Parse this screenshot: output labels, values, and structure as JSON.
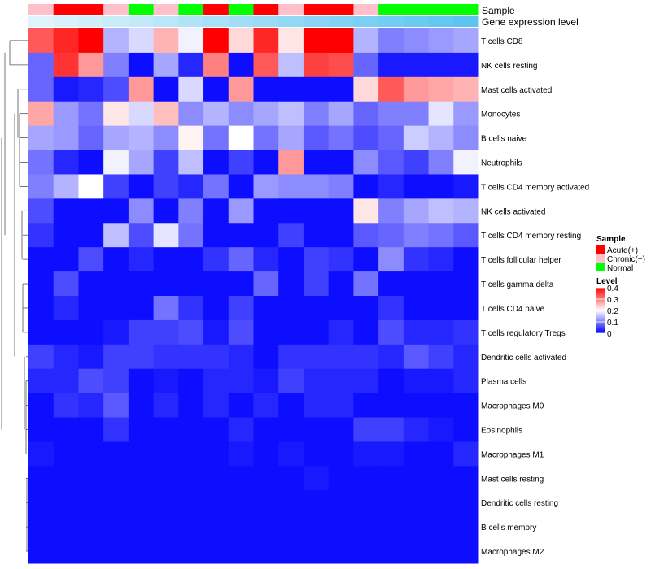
{
  "chart_data": {
    "type": "heatmap",
    "annotation_titles": {
      "sample": "Sample",
      "expression": "Gene expression level"
    },
    "sample_groups": [
      "Chronic(+)",
      "Acute(+)",
      "Acute(+)",
      "Chronic(+)",
      "Normal",
      "Chronic(+)",
      "Normal",
      "Acute(+)",
      "Normal",
      "Acute(+)",
      "Chronic(+)",
      "Acute(+)",
      "Acute(+)",
      "Chronic(+)",
      "Normal",
      "Normal",
      "Normal",
      "Normal"
    ],
    "gene_expression_level": [
      0.02,
      0.04,
      0.06,
      0.08,
      0.1,
      0.12,
      0.14,
      0.16,
      0.18,
      0.2,
      0.22,
      0.24,
      0.26,
      0.28,
      0.3,
      0.32,
      0.34,
      0.36
    ],
    "rows": [
      "T cells CD8",
      "NK cells resting",
      "Mast cells activated",
      "Monocytes",
      "B cells naive",
      "Neutrophils",
      "T cells CD4 memory activated",
      "NK cells activated",
      "T cells CD4 memory resting",
      "T cells follicular helper",
      "T cells gamma delta",
      "T cells CD4 naive",
      "T cells regulatory  Tregs",
      "Dendritic cells activated",
      "Plasma cells",
      "Macrophages M0",
      "Eosinophils",
      "Macrophages M1",
      "Mast cells resting",
      "Dendritic cells resting",
      "B cells memory",
      "Macrophages M2"
    ],
    "values": [
      [
        0.33,
        0.37,
        0.4,
        0.14,
        0.17,
        0.26,
        0.19,
        0.4,
        0.23,
        0.37,
        0.22,
        0.4,
        0.4,
        0.14,
        0.1,
        0.11,
        0.12,
        0.13
      ],
      [
        0.08,
        0.36,
        0.28,
        0.1,
        0.01,
        0.13,
        0.03,
        0.3,
        0.01,
        0.33,
        0.15,
        0.35,
        0.34,
        0.08,
        0.02,
        0.02,
        0.02,
        0.02
      ],
      [
        0.08,
        0.02,
        0.03,
        0.06,
        0.28,
        0.01,
        0.17,
        0.01,
        0.28,
        0.01,
        0.01,
        0.01,
        0.01,
        0.23,
        0.33,
        0.28,
        0.27,
        0.26
      ],
      [
        0.27,
        0.12,
        0.09,
        0.22,
        0.17,
        0.25,
        0.11,
        0.14,
        0.11,
        0.13,
        0.15,
        0.1,
        0.13,
        0.08,
        0.1,
        0.1,
        0.18,
        0.12
      ],
      [
        0.13,
        0.12,
        0.08,
        0.13,
        0.14,
        0.11,
        0.21,
        0.09,
        0.2,
        0.09,
        0.13,
        0.07,
        0.09,
        0.06,
        0.08,
        0.16,
        0.14,
        0.11
      ],
      [
        0.09,
        0.03,
        0.01,
        0.19,
        0.13,
        0.05,
        0.15,
        0.01,
        0.05,
        0.01,
        0.28,
        0.01,
        0.01,
        0.11,
        0.07,
        0.05,
        0.1,
        0.19
      ],
      [
        0.1,
        0.14,
        0.2,
        0.05,
        0.01,
        0.05,
        0.03,
        0.09,
        0.01,
        0.12,
        0.11,
        0.11,
        0.1,
        0.01,
        0.03,
        0.01,
        0.01,
        0.02
      ],
      [
        0.06,
        0.01,
        0.01,
        0.01,
        0.11,
        0.01,
        0.1,
        0.01,
        0.12,
        0.01,
        0.01,
        0.01,
        0.01,
        0.22,
        0.1,
        0.13,
        0.15,
        0.14
      ],
      [
        0.04,
        0.01,
        0.01,
        0.15,
        0.06,
        0.18,
        0.09,
        0.01,
        0.01,
        0.01,
        0.05,
        0.01,
        0.01,
        0.07,
        0.08,
        0.1,
        0.09,
        0.07
      ],
      [
        0.01,
        0.01,
        0.06,
        0.01,
        0.03,
        0.01,
        0.01,
        0.04,
        0.08,
        0.03,
        0.01,
        0.05,
        0.04,
        0.01,
        0.11,
        0.04,
        0.03,
        0.01
      ],
      [
        0.01,
        0.06,
        0.01,
        0.01,
        0.01,
        0.01,
        0.01,
        0.01,
        0.01,
        0.08,
        0.01,
        0.05,
        0.01,
        0.09,
        0.01,
        0.01,
        0.01,
        0.01
      ],
      [
        0.01,
        0.03,
        0.01,
        0.01,
        0.01,
        0.09,
        0.04,
        0.01,
        0.05,
        0.01,
        0.01,
        0.01,
        0.01,
        0.01,
        0.04,
        0.01,
        0.01,
        0.01
      ],
      [
        0.01,
        0.01,
        0.01,
        0.02,
        0.05,
        0.05,
        0.06,
        0.02,
        0.06,
        0.01,
        0.01,
        0.01,
        0.03,
        0.01,
        0.06,
        0.03,
        0.03,
        0.04
      ],
      [
        0.05,
        0.03,
        0.02,
        0.05,
        0.05,
        0.04,
        0.04,
        0.04,
        0.03,
        0.01,
        0.04,
        0.04,
        0.04,
        0.04,
        0.03,
        0.07,
        0.05,
        0.03
      ],
      [
        0.03,
        0.03,
        0.06,
        0.05,
        0.01,
        0.02,
        0.01,
        0.03,
        0.03,
        0.02,
        0.05,
        0.03,
        0.03,
        0.03,
        0.01,
        0.02,
        0.02,
        0.03
      ],
      [
        0.01,
        0.04,
        0.03,
        0.07,
        0.01,
        0.03,
        0.01,
        0.03,
        0.01,
        0.03,
        0.01,
        0.03,
        0.03,
        0.01,
        0.01,
        0.01,
        0.01,
        0.01
      ],
      [
        0.01,
        0.01,
        0.01,
        0.04,
        0.01,
        0.01,
        0.01,
        0.01,
        0.03,
        0.01,
        0.01,
        0.01,
        0.01,
        0.05,
        0.05,
        0.03,
        0.02,
        0.01
      ],
      [
        0.02,
        0.01,
        0.01,
        0.01,
        0.01,
        0.01,
        0.01,
        0.01,
        0.02,
        0.01,
        0.02,
        0.01,
        0.01,
        0.02,
        0.02,
        0.01,
        0.01,
        0.03
      ],
      [
        0.01,
        0.01,
        0.01,
        0.01,
        0.01,
        0.01,
        0.01,
        0.01,
        0.01,
        0.01,
        0.01,
        0.02,
        0.01,
        0.01,
        0.01,
        0.01,
        0.01,
        0.01
      ],
      [
        0.01,
        0.01,
        0.01,
        0.01,
        0.01,
        0.01,
        0.01,
        0.01,
        0.01,
        0.01,
        0.01,
        0.01,
        0.01,
        0.01,
        0.01,
        0.01,
        0.01,
        0.01
      ],
      [
        0.01,
        0.01,
        0.01,
        0.01,
        0.01,
        0.01,
        0.01,
        0.01,
        0.01,
        0.01,
        0.01,
        0.01,
        0.01,
        0.01,
        0.01,
        0.01,
        0.01,
        0.01
      ],
      [
        0.01,
        0.01,
        0.01,
        0.01,
        0.01,
        0.01,
        0.01,
        0.01,
        0.01,
        0.01,
        0.01,
        0.01,
        0.01,
        0.01,
        0.01,
        0.01,
        0.01,
        0.01
      ]
    ],
    "color_scale": {
      "low": "#0000ff",
      "mid": "#ffffff",
      "high": "#ff0000",
      "min": 0,
      "mid_value": 0.2,
      "max": 0.4
    },
    "sample_legend": {
      "title": "Sample",
      "entries": [
        {
          "label": "Acute(+)",
          "color": "#ff0000"
        },
        {
          "label": "Chronic(+)",
          "color": "#ffc0cb"
        },
        {
          "label": "Normal",
          "color": "#00ff00"
        }
      ]
    },
    "level_legend": {
      "title": "Level",
      "ticks": [
        "0",
        "0.1",
        "0.2",
        "0.3",
        "0.4"
      ]
    },
    "expression_colors": {
      "low": "#e0f4fb",
      "high": "#5bc4f1"
    }
  }
}
